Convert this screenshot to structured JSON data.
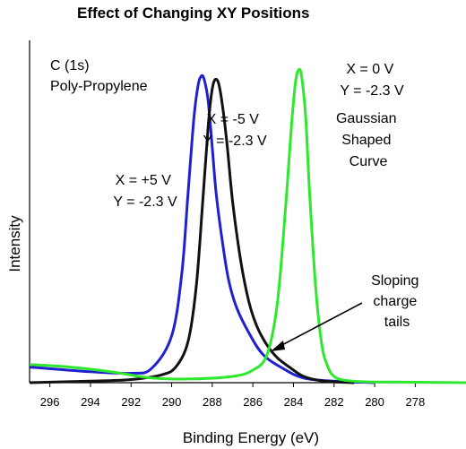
{
  "chart_data": {
    "type": "line",
    "title": "Effect of Changing XY Positions",
    "xlabel": "Binding Energy (eV)",
    "ylabel": "Intensity",
    "xlim": [
      297,
      275.5
    ],
    "x_reversed": true,
    "x_ticks": [
      296,
      294,
      292,
      290,
      288,
      286,
      284,
      282,
      280,
      278
    ],
    "grid": false,
    "annotations": [
      {
        "id": "sample",
        "lines": [
          "C (1s)",
          "Poly-Propylene"
        ]
      },
      {
        "id": "green_label",
        "lines": [
          "X = 0 V",
          "Y = -2.3 V"
        ]
      },
      {
        "id": "gaussian",
        "lines": [
          "Gaussian",
          "Shaped",
          "Curve"
        ]
      },
      {
        "id": "black_label",
        "lines": [
          "X = -5 V",
          "Y = -2.3 V"
        ]
      },
      {
        "id": "blue_label",
        "lines": [
          "X = +5 V",
          "Y = -2.3 V"
        ]
      },
      {
        "id": "tails",
        "lines": [
          "Sloping",
          "charge",
          "tails"
        ]
      }
    ],
    "series": [
      {
        "color": "#2020d0",
        "x": [
          297,
          294,
          292,
          291,
          290,
          289.5,
          289.2,
          288.9,
          288.7,
          288.55,
          288.4,
          288.2,
          288.0,
          287.8,
          287.5,
          287.2,
          286.8,
          286.2,
          285.5,
          284.5,
          283.5,
          282,
          280
        ],
        "y": [
          0.05,
          0.035,
          0.03,
          0.045,
          0.15,
          0.35,
          0.6,
          0.85,
          0.95,
          0.98,
          0.97,
          0.9,
          0.75,
          0.6,
          0.45,
          0.33,
          0.24,
          0.16,
          0.09,
          0.045,
          0.015,
          0.005,
          0.0
        ]
      },
      {
        "color": "#111111",
        "x": [
          297,
          294,
          292,
          290.5,
          289.8,
          289.2,
          288.8,
          288.5,
          288.2,
          288.0,
          287.8,
          287.6,
          287.3,
          287.0,
          286.6,
          286.2,
          285.8,
          285.3,
          284.8,
          284.2,
          283.5,
          282.5,
          281
        ],
        "y": [
          0.0,
          0.005,
          0.01,
          0.025,
          0.05,
          0.13,
          0.3,
          0.55,
          0.82,
          0.94,
          0.97,
          0.93,
          0.78,
          0.58,
          0.39,
          0.26,
          0.18,
          0.12,
          0.08,
          0.05,
          0.02,
          0.005,
          0.0
        ]
      },
      {
        "color": "#2ee82e",
        "x": [
          297,
          295,
          293,
          291,
          289,
          287,
          286,
          285.3,
          284.8,
          284.4,
          284.1,
          283.9,
          283.75,
          283.6,
          283.4,
          283.2,
          282.9,
          282.6,
          282.3,
          282.0,
          281.5,
          280.5,
          279,
          277,
          275.5
        ],
        "y": [
          0.058,
          0.05,
          0.035,
          0.015,
          0.012,
          0.02,
          0.04,
          0.09,
          0.25,
          0.55,
          0.82,
          0.96,
          1.0,
          0.98,
          0.85,
          0.6,
          0.3,
          0.12,
          0.05,
          0.02,
          0.008,
          0.003,
          0.002,
          0.001,
          0.0
        ]
      }
    ]
  }
}
